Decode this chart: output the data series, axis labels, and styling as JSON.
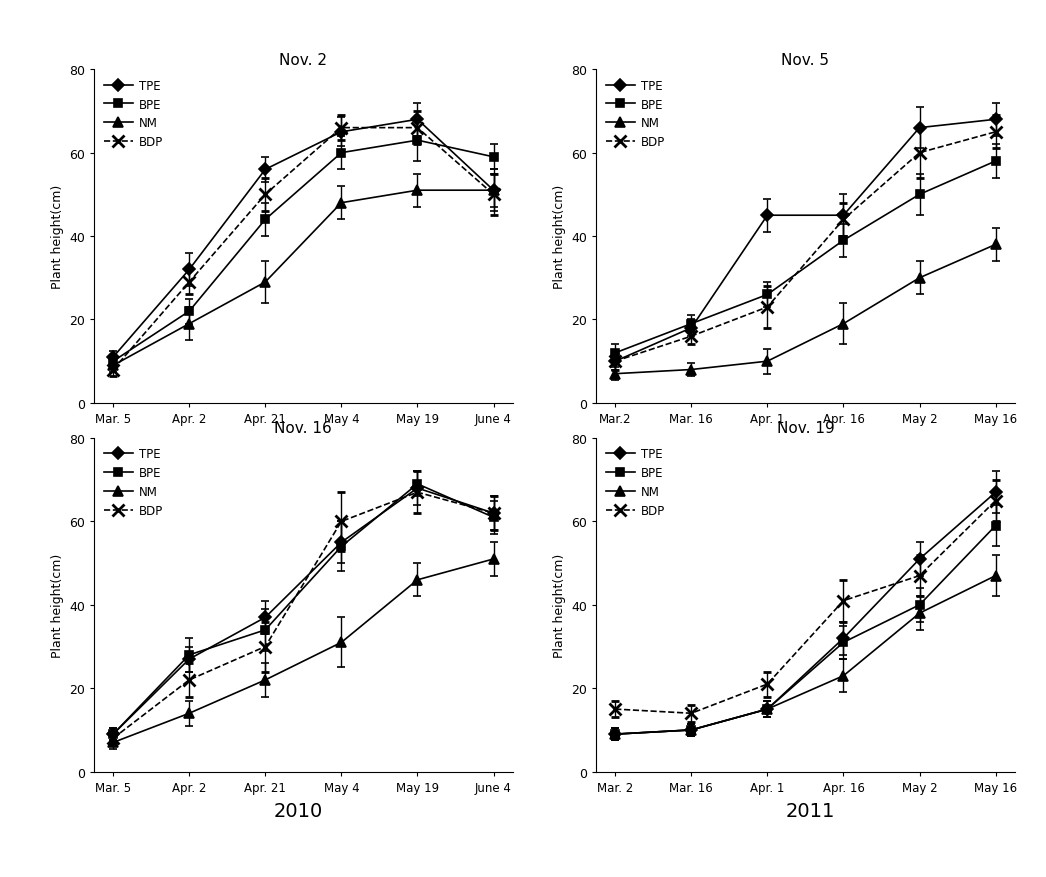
{
  "panels": [
    {
      "title": "Nov. 2",
      "x_labels": [
        "Mar. 5",
        "Apr. 2",
        "Apr. 21",
        "May 4",
        "May 19",
        "June 4"
      ],
      "series": {
        "TPE": {
          "y": [
            11,
            32,
            56,
            65,
            68,
            51
          ],
          "yerr": [
            1.5,
            4,
            3,
            3.5,
            4,
            4
          ],
          "marker": "D",
          "linestyle": "-"
        },
        "BPE": {
          "y": [
            10,
            22,
            44,
            60,
            63,
            59
          ],
          "yerr": [
            1.5,
            3,
            4,
            4,
            5,
            3
          ],
          "marker": "s",
          "linestyle": "-"
        },
        "NM": {
          "y": [
            9,
            19,
            29,
            48,
            51,
            51
          ],
          "yerr": [
            1.5,
            4,
            5,
            4,
            4,
            5
          ],
          "marker": "^",
          "linestyle": "-"
        },
        "BDP": {
          "y": [
            8,
            29,
            50,
            66,
            66,
            50
          ],
          "yerr": [
            1.5,
            3,
            4,
            3,
            4,
            5
          ],
          "marker": "x",
          "linestyle": "--"
        }
      }
    },
    {
      "title": "Nov. 5",
      "x_labels": [
        "Mar.2",
        "Mar. 16",
        "Apr. 1",
        "Apr. 16",
        "May 2",
        "May 16"
      ],
      "series": {
        "TPE": {
          "y": [
            10,
            18,
            45,
            45,
            66,
            68
          ],
          "yerr": [
            2,
            2,
            4,
            5,
            5,
            4
          ],
          "marker": "D",
          "linestyle": "-"
        },
        "BPE": {
          "y": [
            12,
            19,
            26,
            39,
            50,
            58
          ],
          "yerr": [
            2,
            2,
            3,
            4,
            5,
            4
          ],
          "marker": "s",
          "linestyle": "-"
        },
        "NM": {
          "y": [
            7,
            8,
            10,
            19,
            30,
            38
          ],
          "yerr": [
            1.5,
            1.5,
            3,
            5,
            4,
            4
          ],
          "marker": "^",
          "linestyle": "-"
        },
        "BDP": {
          "y": [
            10,
            16,
            23,
            44,
            60,
            65
          ],
          "yerr": [
            2,
            2,
            5,
            4,
            6,
            4
          ],
          "marker": "x",
          "linestyle": "--"
        }
      }
    },
    {
      "title": "Nov. 16",
      "x_labels": [
        "Mar. 5",
        "Apr. 2",
        "Apr. 21",
        "May 4",
        "May 19",
        "June 4"
      ],
      "series": {
        "TPE": {
          "y": [
            9,
            27,
            37,
            55,
            68,
            62
          ],
          "yerr": [
            1.5,
            3,
            4,
            5,
            4,
            4
          ],
          "marker": "D",
          "linestyle": "-"
        },
        "BPE": {
          "y": [
            9,
            28,
            34,
            54,
            69,
            61
          ],
          "yerr": [
            1.5,
            4,
            5,
            6,
            3,
            4
          ],
          "marker": "s",
          "linestyle": "-"
        },
        "NM": {
          "y": [
            7,
            14,
            22,
            31,
            46,
            51
          ],
          "yerr": [
            1.5,
            3,
            4,
            6,
            4,
            4
          ],
          "marker": "^",
          "linestyle": "-"
        },
        "BDP": {
          "y": [
            8,
            22,
            30,
            60,
            67,
            62
          ],
          "yerr": [
            1.5,
            4,
            6,
            7,
            5,
            4
          ],
          "marker": "x",
          "linestyle": "--"
        }
      }
    },
    {
      "title": "Nov. 19",
      "x_labels": [
        "Mar. 2",
        "Mar. 16",
        "Apr. 1",
        "Apr. 16",
        "May 2",
        "May 16"
      ],
      "series": {
        "TPE": {
          "y": [
            9,
            10,
            15,
            32,
            51,
            67
          ],
          "yerr": [
            1.5,
            1.5,
            2,
            4,
            4,
            5
          ],
          "marker": "D",
          "linestyle": "-"
        },
        "BPE": {
          "y": [
            9,
            10,
            15,
            31,
            40,
            59
          ],
          "yerr": [
            1.5,
            1.5,
            2,
            4,
            4,
            5
          ],
          "marker": "s",
          "linestyle": "-"
        },
        "NM": {
          "y": [
            9,
            10,
            15,
            23,
            38,
            47
          ],
          "yerr": [
            1.5,
            1.5,
            2,
            4,
            4,
            5
          ],
          "marker": "^",
          "linestyle": "-"
        },
        "BDP": {
          "y": [
            15,
            14,
            21,
            41,
            47,
            65
          ],
          "yerr": [
            2,
            2,
            3,
            5,
            5,
            5
          ],
          "marker": "x",
          "linestyle": "--"
        }
      }
    }
  ],
  "year_labels": [
    "2010",
    "2011"
  ],
  "ylabel": "Plant height(cm)",
  "ylim": [
    0,
    80
  ],
  "yticks": [
    0,
    20,
    40,
    60,
    80
  ],
  "series_order": [
    "TPE",
    "BPE",
    "NM",
    "BDP"
  ],
  "color": "#000000",
  "legend_loc": "upper left",
  "markersize": {
    "D": 6,
    "s": 6,
    "^": 7,
    "x": 8
  }
}
